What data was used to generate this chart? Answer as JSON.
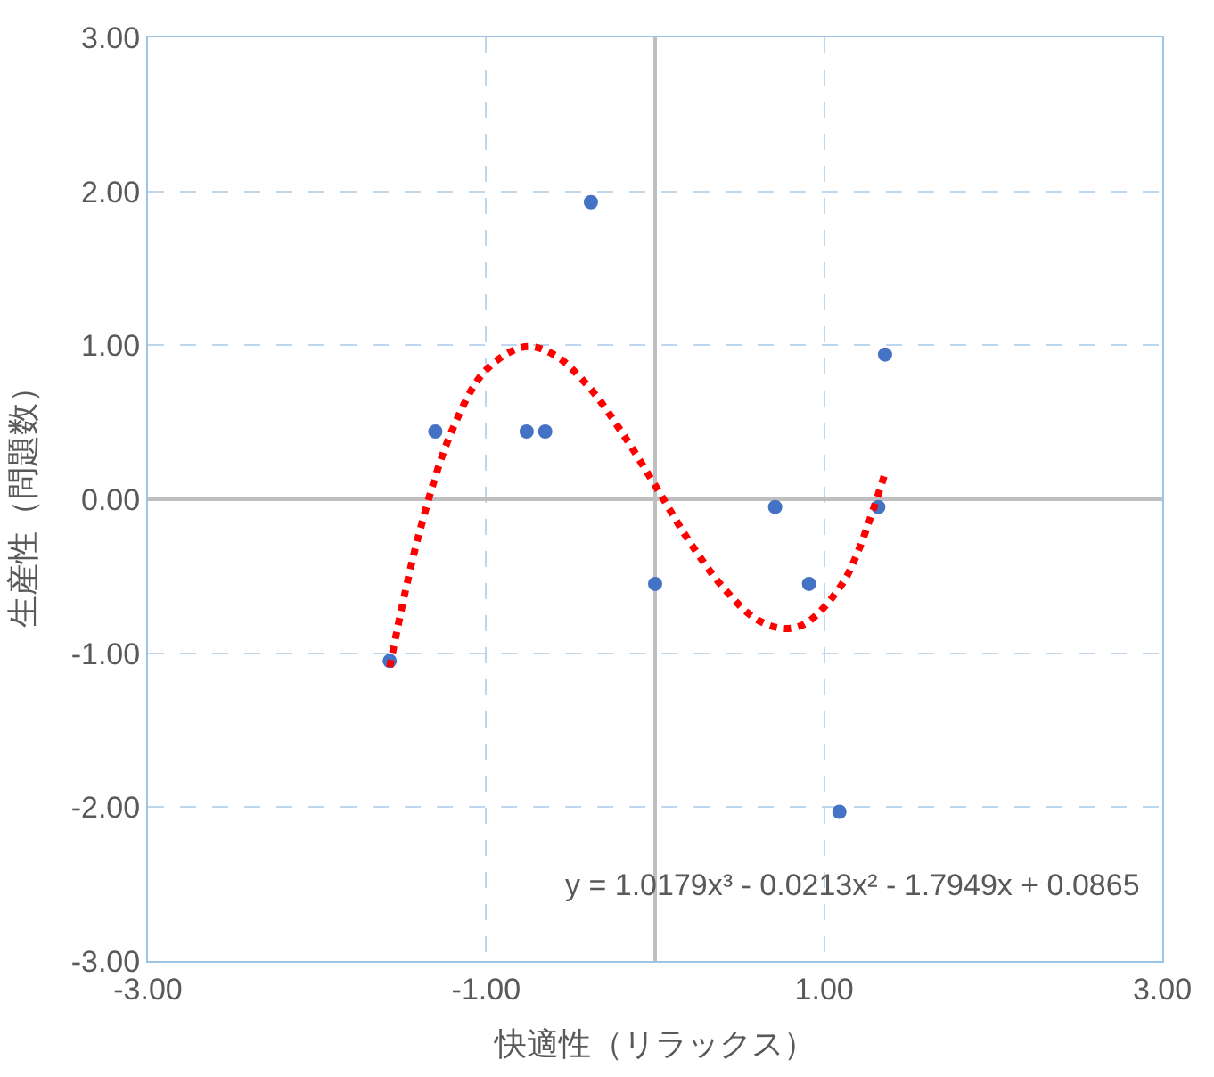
{
  "chart_data": {
    "type": "scatter",
    "xlabel": "快適性（リラックス）",
    "ylabel": "生産性（問題数）",
    "xlim": [
      -3,
      3
    ],
    "ylim": [
      -3,
      3
    ],
    "xticks": [
      {
        "value": -3,
        "label": "-3.00"
      },
      {
        "value": -1,
        "label": "-1.00"
      },
      {
        "value": 1,
        "label": "1.00"
      },
      {
        "value": 3,
        "label": "3.00"
      }
    ],
    "yticks": [
      {
        "value": -3,
        "label": "-3.00"
      },
      {
        "value": -2,
        "label": "-2.00"
      },
      {
        "value": -1,
        "label": "-1.00"
      },
      {
        "value": 0,
        "label": "0.00"
      },
      {
        "value": 1,
        "label": "1.00"
      },
      {
        "value": 2,
        "label": "2.00"
      },
      {
        "value": 3,
        "label": "3.00"
      }
    ],
    "grid": true,
    "series": [
      {
        "color": "#4472c4",
        "marker": "circle",
        "x": [
          -1.57,
          -1.3,
          -0.76,
          -0.65,
          -0.38,
          0.0,
          0.71,
          0.91,
          1.09,
          1.32,
          1.36
        ],
        "values": [
          -1.05,
          0.44,
          0.44,
          0.44,
          1.93,
          -0.55,
          -0.05,
          -0.55,
          -2.03,
          -0.05,
          0.94
        ]
      },
      {
        "type": "line",
        "color": "#ff0000",
        "marker": "none",
        "line_style": "dotted",
        "x": [
          -1.57,
          -1.4,
          -1.2,
          -1.0,
          -0.77,
          -0.6,
          -0.4,
          -0.2,
          0.0,
          0.2,
          0.4,
          0.6,
          0.77,
          0.9,
          1.1,
          1.2,
          1.36
        ],
        "values": [
          -1.09,
          -0.24,
          0.45,
          0.84,
          0.99,
          0.94,
          0.74,
          0.44,
          0.09,
          -0.27,
          -0.57,
          -0.78,
          -0.84,
          -0.8,
          -0.56,
          -0.34,
          0.17
        ]
      }
    ],
    "annotations": [
      "y = 1.0179x³ - 0.0213x² - 1.7949x + 0.0865"
    ]
  }
}
